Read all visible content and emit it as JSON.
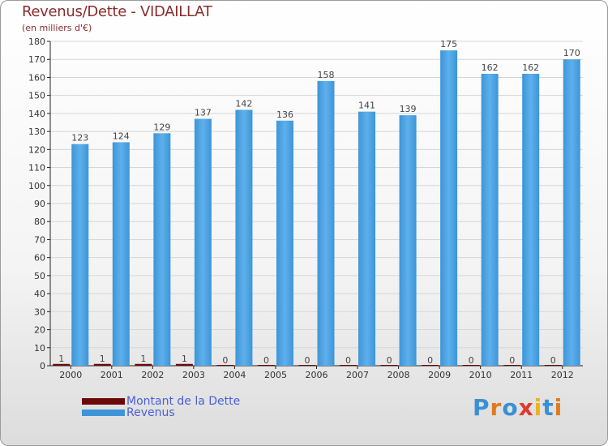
{
  "header": {
    "title": "Revenus/Dette - VIDAILLAT",
    "subtitle": "(en milliers d'€)"
  },
  "legend": {
    "dette_label": "Montant de la Dette",
    "revenus_label": "Revenus"
  },
  "logo": {
    "text": "Proxiti"
  },
  "colors": {
    "dette": "#6b0a0a",
    "revenus": "#3d95d8",
    "revenus_light": "#5eb0ec",
    "axis": "#222222",
    "grid": "#d6d6d6"
  },
  "chart_data": {
    "type": "bar",
    "title": "Revenus/Dette - VIDAILLAT",
    "subtitle": "(en milliers d'€)",
    "categories": [
      "2000",
      "2001",
      "2002",
      "2003",
      "2004",
      "2005",
      "2006",
      "2007",
      "2008",
      "2009",
      "2010",
      "2011",
      "2012"
    ],
    "series": [
      {
        "name": "Montant de la Dette",
        "values": [
          1,
          1,
          1,
          1,
          0,
          0,
          0,
          0,
          0,
          0,
          0,
          0,
          0
        ]
      },
      {
        "name": "Revenus",
        "values": [
          123,
          124,
          129,
          137,
          142,
          136,
          158,
          141,
          139,
          175,
          162,
          162,
          170
        ]
      }
    ],
    "ylim": [
      0,
      180
    ],
    "ytick_step": 10,
    "grid": true,
    "legend_position": "bottom-left"
  }
}
